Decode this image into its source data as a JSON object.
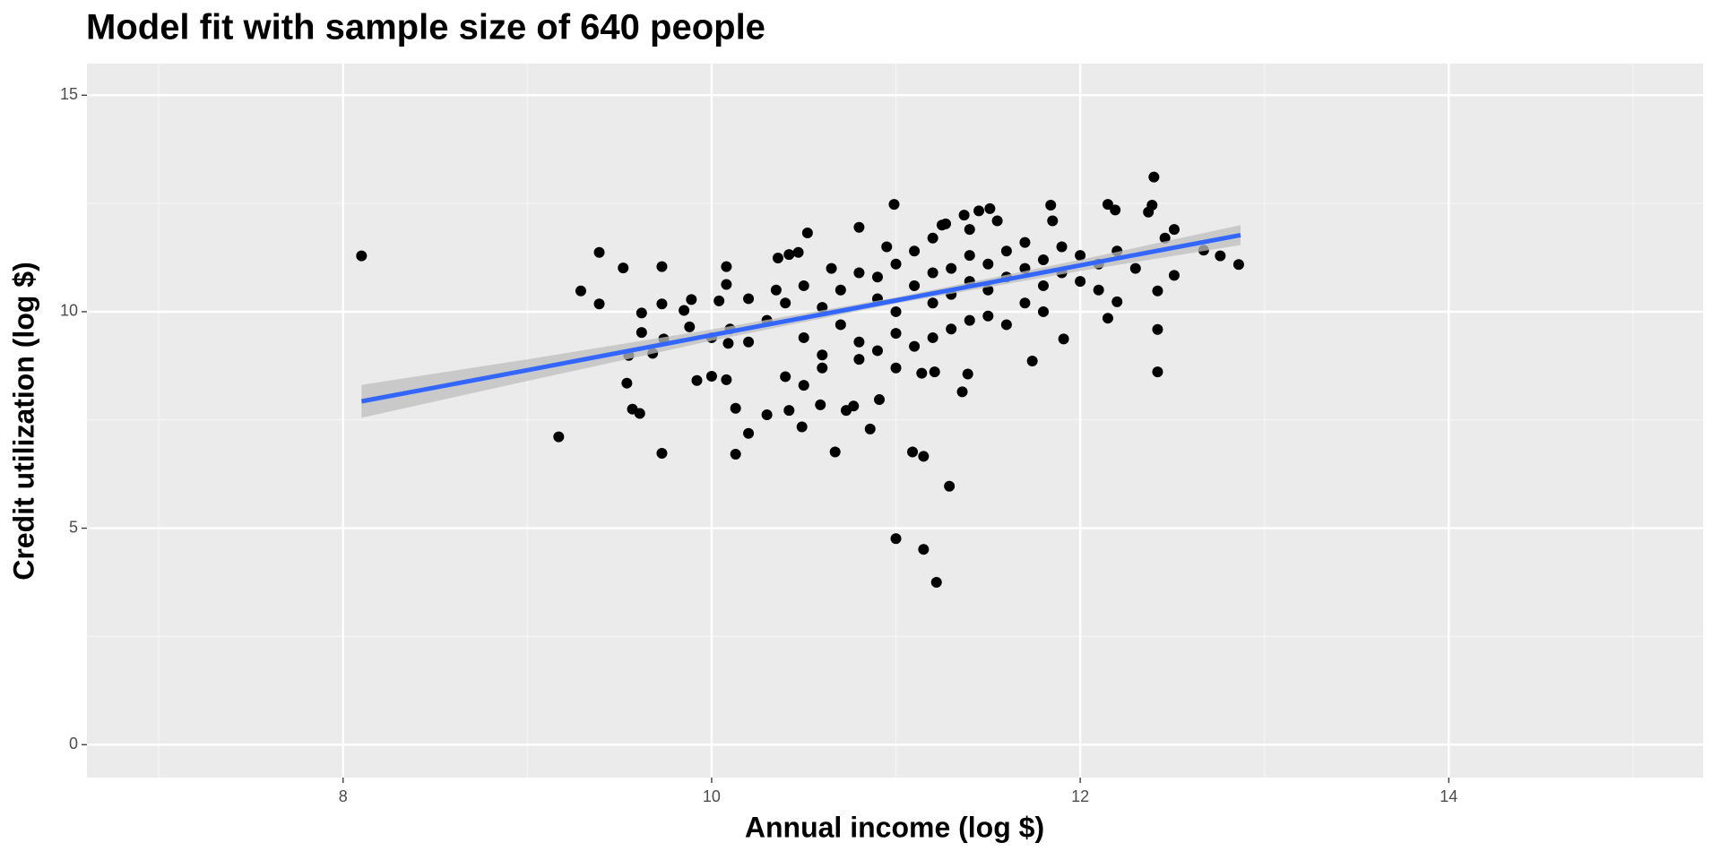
{
  "chart_data": {
    "type": "scatter",
    "title": "Model fit with sample size of 640 people",
    "x_label": "Annual income (log $)",
    "y_label": "Credit utilization (log $)",
    "xlim": [
      6.61,
      15.38
    ],
    "ylim": [
      -0.76,
      15.73
    ],
    "xticks": [
      8,
      10,
      12,
      14
    ],
    "yticks": [
      0,
      5,
      10,
      15
    ],
    "x_minor_breaks": [
      7,
      9,
      11,
      13,
      15
    ],
    "y_minor_breaks": [
      2.5,
      7.5,
      12.5
    ],
    "grid": true,
    "points": {
      "color": "#000000",
      "x": [
        8.1,
        9.17,
        9.29,
        9.39,
        9.39,
        9.52,
        9.54,
        9.57,
        9.61,
        9.62,
        9.62,
        9.55,
        9.73,
        9.73,
        9.73,
        9.74,
        9.68,
        9.85,
        9.89,
        9.88,
        9.92,
        10.0,
        10.04,
        10.08,
        10.08,
        10.09,
        10.08,
        10.13,
        10.13,
        10.2,
        10.3,
        10.49,
        10.42,
        10.36,
        10.42,
        10.47,
        10.52,
        10.67,
        10.59,
        10.73,
        10.77,
        10.86,
        10.91,
        10.8,
        10.99,
        11.0,
        11.15,
        11.22,
        11.29,
        11.09,
        11.15,
        11.14,
        11.21,
        11.36,
        11.39,
        11.51,
        11.45,
        11.37,
        11.27,
        11.74,
        11.91,
        11.84,
        12.15,
        12.19,
        12.4,
        12.39,
        12.15,
        12.2,
        12.42,
        12.42,
        12.42,
        12.51,
        12.51,
        12.67,
        12.76,
        12.86,
        12.46,
        12.37,
        10.3,
        10.4,
        10.5,
        10.5,
        10.6,
        10.6,
        10.7,
        10.7,
        10.8,
        10.8,
        10.9,
        10.9,
        11.0,
        11.0,
        11.0,
        11.1,
        11.1,
        11.1,
        11.2,
        11.2,
        11.2,
        11.3,
        11.3,
        11.3,
        11.4,
        11.4,
        11.4,
        11.5,
        11.5,
        11.5,
        11.6,
        11.6,
        11.7,
        11.7,
        11.7,
        11.8,
        11.8,
        11.9,
        11.9,
        12.0,
        12.0,
        12.1,
        12.2,
        12.3,
        10.2,
        10.2,
        10.1,
        10.0,
        10.4,
        10.5,
        10.6,
        10.8,
        10.9,
        11.0,
        11.2,
        11.4,
        11.6,
        11.8,
        12.1,
        10.35,
        10.65,
        10.95,
        11.25,
        11.55,
        11.85
      ],
      "y": [
        11.29,
        7.11,
        10.48,
        11.37,
        10.18,
        11.01,
        8.35,
        7.75,
        7.65,
        9.97,
        9.52,
        8.99,
        11.04,
        10.18,
        6.73,
        9.37,
        9.04,
        10.03,
        10.28,
        9.65,
        8.41,
        8.51,
        10.25,
        11.04,
        10.63,
        9.27,
        8.43,
        7.77,
        6.71,
        7.19,
        7.62,
        7.34,
        7.72,
        11.24,
        11.32,
        11.37,
        11.82,
        6.76,
        7.85,
        7.72,
        7.82,
        7.29,
        7.97,
        11.95,
        12.48,
        4.76,
        4.51,
        3.75,
        5.97,
        6.76,
        6.66,
        8.58,
        8.61,
        8.15,
        8.56,
        12.38,
        12.33,
        12.23,
        12.03,
        8.86,
        9.37,
        12.46,
        12.48,
        12.35,
        13.11,
        12.46,
        9.85,
        10.23,
        9.59,
        8.61,
        10.48,
        11.9,
        10.84,
        11.42,
        11.29,
        11.09,
        11.7,
        12.3,
        9.8,
        10.2,
        10.6,
        9.4,
        10.1,
        9.0,
        10.5,
        9.7,
        10.9,
        9.3,
        10.3,
        10.8,
        10.0,
        11.1,
        9.5,
        10.6,
        11.4,
        9.2,
        10.9,
        10.2,
        11.7,
        11.0,
        10.4,
        9.6,
        11.3,
        10.7,
        11.9,
        11.1,
        10.5,
        9.9,
        11.4,
        10.8,
        11.0,
        10.2,
        11.6,
        11.2,
        10.6,
        11.5,
        10.9,
        11.3,
        10.7,
        11.1,
        11.4,
        11.0,
        9.3,
        10.3,
        9.6,
        9.4,
        8.5,
        8.3,
        8.7,
        8.9,
        9.1,
        8.7,
        9.4,
        9.8,
        9.7,
        10.0,
        10.5,
        10.5,
        11.0,
        11.5,
        12.0,
        12.1,
        12.1
      ]
    },
    "fit": {
      "color": "#3366ff",
      "band_color": "#bebebe",
      "x": [
        8.1,
        9,
        10,
        11,
        12,
        12.87
      ],
      "y": [
        7.93,
        8.65,
        9.46,
        10.26,
        11.07,
        11.77
      ],
      "lower": [
        7.55,
        8.4,
        9.33,
        10.19,
        10.94,
        11.54
      ],
      "upper": [
        8.31,
        8.9,
        9.59,
        10.33,
        11.2,
        12.0
      ]
    }
  }
}
